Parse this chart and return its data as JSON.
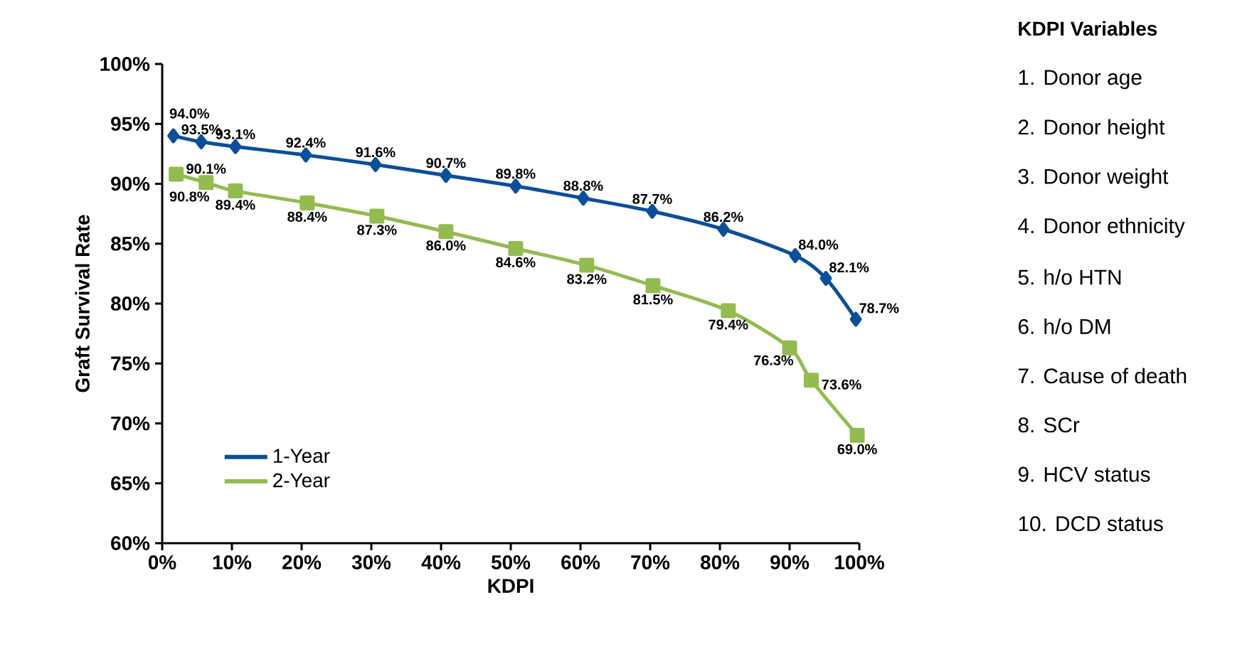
{
  "chart_data": {
    "type": "line",
    "xlabel": "KDPI",
    "ylabel": "Graft Survival Rate",
    "xlim": [
      0,
      100
    ],
    "ylim": [
      60,
      100
    ],
    "xticks": [
      {
        "value": 0,
        "label": "0%"
      },
      {
        "value": 10,
        "label": "10%"
      },
      {
        "value": 20,
        "label": "20%"
      },
      {
        "value": 30,
        "label": "30%"
      },
      {
        "value": 40,
        "label": "40%"
      },
      {
        "value": 50,
        "label": "50%"
      },
      {
        "value": 60,
        "label": "60%"
      },
      {
        "value": 70,
        "label": "70%"
      },
      {
        "value": 80,
        "label": "80%"
      },
      {
        "value": 90,
        "label": "90%"
      },
      {
        "value": 100,
        "label": "100%"
      }
    ],
    "yticks": [
      {
        "value": 60,
        "label": "60%"
      },
      {
        "value": 65,
        "label": "65%"
      },
      {
        "value": 70,
        "label": "70%"
      },
      {
        "value": 75,
        "label": "75%"
      },
      {
        "value": 80,
        "label": "80%"
      },
      {
        "value": 85,
        "label": "85%"
      },
      {
        "value": 90,
        "label": "90%"
      },
      {
        "value": 95,
        "label": "95%"
      },
      {
        "value": 100,
        "label": "100%"
      }
    ],
    "series": [
      {
        "name": "1-Year",
        "color": "#0a4f9c",
        "marker": "diamond",
        "x": [
          1.6,
          5.6,
          10.5,
          20.6,
          30.6,
          40.7,
          50.7,
          60.4,
          70.3,
          80.5,
          90.8,
          95.2,
          99.5
        ],
        "values": [
          94.0,
          93.5,
          93.1,
          92.4,
          91.6,
          90.7,
          89.8,
          88.8,
          87.7,
          86.2,
          84.0,
          82.1,
          78.7
        ],
        "value_labels": [
          "94.0%",
          "93.5%",
          "93.1%",
          "92.4%",
          "91.6%",
          "90.7%",
          "89.8%",
          "88.8%",
          "87.7%",
          "86.2%",
          "84.0%",
          "82.1%",
          "78.7%"
        ]
      },
      {
        "name": "2-Year",
        "color": "#92bc4f",
        "marker": "square",
        "x": [
          2.0,
          6.3,
          10.5,
          20.8,
          30.8,
          40.7,
          50.7,
          60.9,
          70.4,
          81.2,
          90.0,
          93.1,
          99.7
        ],
        "values": [
          90.8,
          90.1,
          89.4,
          88.4,
          87.3,
          86.0,
          84.6,
          83.2,
          81.5,
          79.4,
          76.3,
          73.6,
          69.0
        ],
        "value_labels": [
          "90.8%",
          "90.1%",
          "89.4%",
          "88.4%",
          "87.3%",
          "86.0%",
          "84.6%",
          "83.2%",
          "81.5%",
          "79.4%",
          "76.3%",
          "73.6%",
          "69.0%"
        ]
      }
    ],
    "legend": "bottom left",
    "grid": false,
    "line_style": "solid",
    "annotations": [
      "**KDPI Variables**",
      "1. Donor age",
      "2. Donor height",
      "3. Donor weight",
      "4. Donor ethnicity",
      "5. h/o HTN",
      "6. h/o DM",
      "7. Cause of death",
      "8. SCr",
      "9. HCV status",
      "10. DCD status"
    ]
  }
}
